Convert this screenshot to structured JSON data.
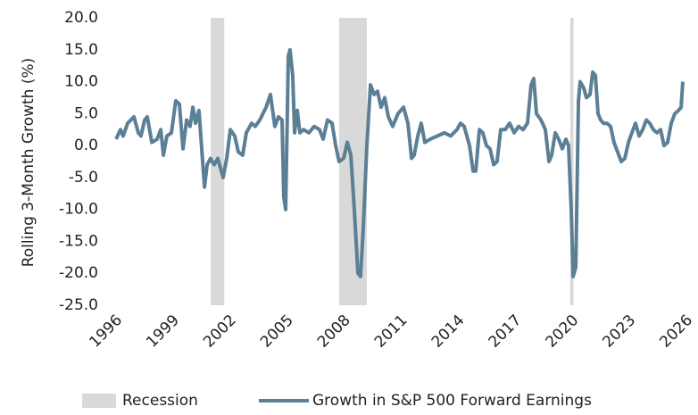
{
  "chart_data": {
    "type": "line",
    "y_label": "Rolling 3-Month Growth (%)",
    "xlim": [
      1996,
      2026
    ],
    "xticks": [
      1996,
      1999,
      2002,
      2005,
      2008,
      2011,
      2014,
      2017,
      2020,
      2023,
      2026
    ],
    "ylim": [
      -25,
      20
    ],
    "yticks": [
      {
        "value": -25,
        "label": "-25.0"
      },
      {
        "value": -20,
        "label": "-20.0"
      },
      {
        "value": -15,
        "label": "-15.0"
      },
      {
        "value": -10,
        "label": "-10.0"
      },
      {
        "value": -5,
        "label": "-5.0"
      },
      {
        "value": 0,
        "label": "0.0"
      },
      {
        "value": 5,
        "label": "5.0"
      },
      {
        "value": 10,
        "label": "10.0"
      },
      {
        "value": 15,
        "label": "15.0"
      },
      {
        "value": 20,
        "label": "20.0"
      }
    ],
    "grid": false,
    "legend": "bottom",
    "recession": {
      "name": "Recession",
      "color": "#d9d9d9",
      "ranges": [
        [
          2001.17,
          2001.88
        ],
        [
          2007.92,
          2009.38
        ],
        [
          2020.08,
          2020.25
        ]
      ]
    },
    "series": [
      {
        "name": "Growth in S&P 500 Forward Earnings",
        "color": "#5b7f95",
        "x": [
          1996.19,
          1996.42,
          1996.56,
          1996.8,
          1997.13,
          1997.36,
          1997.5,
          1997.69,
          1997.83,
          1998.07,
          1998.35,
          1998.54,
          1998.68,
          1998.86,
          1999.1,
          1999.33,
          1999.52,
          1999.71,
          1999.9,
          2000.08,
          2000.23,
          2000.37,
          2000.55,
          2000.84,
          2000.98,
          2001.16,
          2001.35,
          2001.54,
          2001.82,
          2002.01,
          2002.2,
          2002.43,
          2002.62,
          2002.85,
          2003.04,
          2003.32,
          2003.51,
          2003.75,
          2004.08,
          2004.31,
          2004.54,
          2004.73,
          2004.92,
          2005.01,
          2005.11,
          2005.25,
          2005.34,
          2005.48,
          2005.58,
          2005.72,
          2005.86,
          2006.05,
          2006.33,
          2006.61,
          2006.89,
          2007.08,
          2007.31,
          2007.55,
          2007.74,
          2007.92,
          2008.16,
          2008.35,
          2008.54,
          2008.72,
          2008.91,
          2009.05,
          2009.19,
          2009.38,
          2009.57,
          2009.76,
          2009.94,
          2010.13,
          2010.32,
          2010.51,
          2010.74,
          2011.02,
          2011.31,
          2011.54,
          2011.73,
          2011.87,
          2012.06,
          2012.24,
          2012.43,
          2012.71,
          2013.09,
          2013.46,
          2013.79,
          2014.12,
          2014.31,
          2014.5,
          2014.78,
          2014.97,
          2015.11,
          2015.3,
          2015.48,
          2015.67,
          2015.86,
          2016.05,
          2016.23,
          2016.42,
          2016.66,
          2016.89,
          2017.13,
          2017.36,
          2017.6,
          2017.83,
          2018.02,
          2018.16,
          2018.3,
          2018.54,
          2018.77,
          2018.96,
          2019.1,
          2019.29,
          2019.47,
          2019.66,
          2019.85,
          2019.99,
          2020.13,
          2020.23,
          2020.37,
          2020.51,
          2020.6,
          2020.79,
          2020.93,
          2021.12,
          2021.26,
          2021.4,
          2021.54,
          2021.68,
          2021.82,
          2022.01,
          2022.2,
          2022.38,
          2022.57,
          2022.76,
          2022.95,
          2023.14,
          2023.32,
          2023.51,
          2023.7,
          2023.89,
          2024.08,
          2024.26,
          2024.45,
          2024.64,
          2024.83,
          2025.01,
          2025.2,
          2025.39,
          2025.58,
          2025.77,
          2025.91,
          2026.0
        ],
        "values": [
          1.0,
          2.5,
          1.5,
          3.5,
          4.5,
          2.0,
          1.5,
          4.0,
          4.5,
          0.5,
          1.0,
          2.5,
          -1.5,
          1.5,
          2.0,
          7.0,
          6.5,
          -0.5,
          4.0,
          3.0,
          6.0,
          3.5,
          5.5,
          -6.5,
          -3.0,
          -2.0,
          -3.0,
          -2.0,
          -5.0,
          -2.0,
          2.5,
          1.5,
          -1.0,
          -1.5,
          2.0,
          3.5,
          3.0,
          4.0,
          6.0,
          8.0,
          3.0,
          4.5,
          4.0,
          -8.0,
          -10.0,
          14.0,
          15.0,
          11.0,
          2.0,
          5.5,
          2.0,
          2.5,
          2.0,
          3.0,
          2.5,
          1.0,
          4.0,
          3.5,
          0.0,
          -2.5,
          -2.0,
          0.5,
          -1.5,
          -10.0,
          -20.0,
          -20.5,
          -13.0,
          0.0,
          9.5,
          8.0,
          8.5,
          6.0,
          7.5,
          4.5,
          3.0,
          5.0,
          6.0,
          3.5,
          -2.0,
          -1.5,
          1.5,
          3.5,
          0.5,
          1.0,
          1.5,
          2.0,
          1.5,
          2.5,
          3.5,
          3.0,
          0.0,
          -4.0,
          -4.0,
          2.5,
          2.0,
          0.0,
          -0.5,
          -3.0,
          -2.5,
          2.5,
          2.5,
          3.5,
          2.0,
          3.0,
          2.5,
          3.5,
          9.5,
          10.5,
          5.0,
          4.0,
          2.5,
          -2.5,
          -1.5,
          2.0,
          1.0,
          -0.5,
          1.0,
          0.0,
          -10.0,
          -20.5,
          -19.0,
          7.0,
          10.0,
          9.0,
          7.5,
          8.0,
          11.5,
          11.0,
          5.0,
          4.0,
          3.5,
          3.5,
          3.0,
          0.5,
          -1.0,
          -2.5,
          -2.0,
          0.5,
          2.0,
          3.5,
          1.5,
          2.5,
          4.0,
          3.5,
          2.5,
          2.0,
          2.5,
          0.0,
          0.5,
          3.5,
          5.0,
          5.5,
          6.0,
          10.0
        ]
      }
    ]
  }
}
